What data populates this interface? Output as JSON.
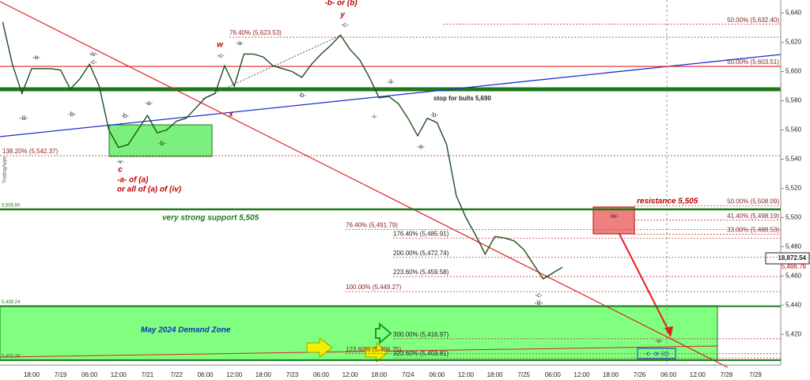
{
  "chart_data": {
    "type": "line",
    "categories": [
      null,
      null,
      null,
      "18:00",
      null,
      null,
      "7/19",
      null,
      null,
      "06:00",
      null,
      null,
      "12:00",
      null,
      null,
      "7/21",
      null,
      null,
      "7/22",
      null,
      null,
      "06:00",
      null,
      null,
      "12:00",
      null,
      null,
      "18:00",
      null,
      null,
      "7/23",
      null,
      null,
      "06:00",
      null,
      null,
      "12:00",
      null,
      null,
      "18:00",
      null,
      null,
      "7/24",
      null,
      null,
      "06:00",
      null,
      null,
      "12:00",
      null,
      null,
      "18:00",
      null,
      null,
      "7/25",
      null,
      null,
      "06:00",
      null,
      null,
      "12:00",
      null,
      null,
      "18:00",
      null,
      null,
      "7/26",
      null,
      null,
      "06:00",
      null,
      null,
      "12:00",
      null,
      null,
      "7/28",
      null,
      null,
      "7/29",
      null
    ],
    "series": [
      {
        "color": "#1f4f1f",
        "values": [
          5634,
          5605,
          5585,
          5602,
          5602,
          5602,
          5601,
          5588,
          5595,
          5605,
          5590,
          5560,
          5548,
          5550,
          5560,
          5570,
          5558,
          5560,
          5566,
          5568,
          5575,
          5582,
          5585,
          5604,
          5590,
          5612,
          5612,
          5610,
          5604,
          5602,
          5600,
          5596,
          5605,
          5612,
          5618,
          5625,
          5615,
          5608,
          5596,
          5582,
          5583,
          5578,
          5568,
          5556,
          5568,
          5565,
          5550,
          5515,
          5500,
          5488,
          5475,
          5487,
          5486,
          5484,
          5478,
          5468,
          5458,
          5462,
          5466,
          null,
          null,
          null,
          null,
          null,
          null,
          null,
          null,
          null,
          null,
          null,
          null,
          null,
          null,
          null,
          null,
          null,
          null,
          null,
          null,
          null
        ]
      }
    ],
    "ylim": [
      5399,
      5649
    ],
    "yticks": [
      {
        "value": 5640,
        "label": "5,640"
      },
      {
        "value": 5620,
        "label": "5,620"
      },
      {
        "value": 5600,
        "label": "5,600"
      },
      {
        "value": 5580,
        "label": "5,580"
      },
      {
        "value": 5560,
        "label": "5,560"
      },
      {
        "value": 5540,
        "label": "5,540"
      },
      {
        "value": 5520,
        "label": "5,520"
      },
      {
        "value": 5500,
        "label": "5,500"
      },
      {
        "value": 5480,
        "label": "5,480"
      },
      {
        "value": 5460,
        "label": "5,460"
      },
      {
        "value": 5440,
        "label": "5,440"
      },
      {
        "value": 5420,
        "label": "5,420"
      }
    ],
    "levels": [
      {
        "value": 5632.4,
        "label": "50.00% (5,632.40)"
      },
      {
        "value": 5623.53,
        "label": "76.40% (5,623.53)"
      },
      {
        "value": 5603.51,
        "label": "50.00% (5,603.51)"
      },
      {
        "value": 5542.37,
        "label": "138.20% (5,542.37)"
      },
      {
        "value": 5508.09,
        "label": "50.00% (5,508.09)"
      },
      {
        "value": 5498.19,
        "label": "41.40% (5,498.19)"
      },
      {
        "value": 5488.53,
        "label": "33.00% (5,488.53)"
      },
      {
        "value": 5491.79,
        "label": "76.40% (5,491.79)"
      },
      {
        "value": 5485.91,
        "label": "176.40% (5,485.91)"
      },
      {
        "value": 5472.74,
        "label": "200.00% (5,472.74)"
      },
      {
        "value": 5459.58,
        "label": "223.60% (5,459.58)"
      },
      {
        "value": 5449.27,
        "label": "100.00% (5,449.27)"
      },
      {
        "value": 5416.97,
        "label": "300.00% (5,416.97)"
      },
      {
        "value": 5403.81,
        "label": "323.60% (5,403.81)"
      },
      {
        "value": 5406.75,
        "label": "123.60% (5,406.75)"
      },
      {
        "value": 5505.6,
        "label": "5,505.60"
      },
      {
        "value": 5439.24,
        "label": "5,439.24"
      },
      {
        "value": 5402.29,
        "label": "5,402.29"
      }
    ],
    "annotations": [
      "-b- or (b)",
      "y",
      "-c-",
      "w",
      "-c-",
      "-a-",
      "-a-",
      "-iv-",
      "-c-",
      "-iii-",
      "-b-",
      "-b-",
      "-a-",
      "-b-",
      "x",
      "-v-",
      "c",
      "-a- of (a)",
      "or all of (a) of (iv)",
      "-b-",
      "-ii-",
      "-i-",
      "-b-",
      "-a-",
      "-c-",
      "-iii-",
      "-iv-",
      "-v-",
      "-c- or (c)",
      "stop for bulls 5,690",
      "very strong support 5,505",
      "resistance 5,505",
      "May 2024 Demand Zone",
      "18,872.54",
      "5,466.76",
      "TradingApps"
    ]
  }
}
